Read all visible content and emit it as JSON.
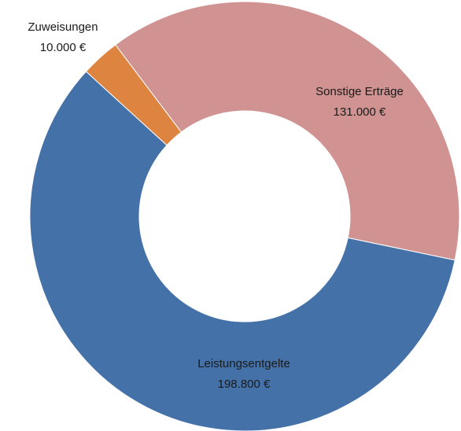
{
  "chart_data": {
    "type": "donut",
    "categories": [
      "Sonstige Erträge",
      "Leistungsentgelte",
      "Zuweisungen"
    ],
    "values": [
      131000,
      198800,
      10000
    ],
    "value_labels": [
      "131.000 €",
      "198.800 €",
      "10.000 €"
    ],
    "colors": [
      "#d09392",
      "#4472a8",
      "#dd8540"
    ]
  }
}
